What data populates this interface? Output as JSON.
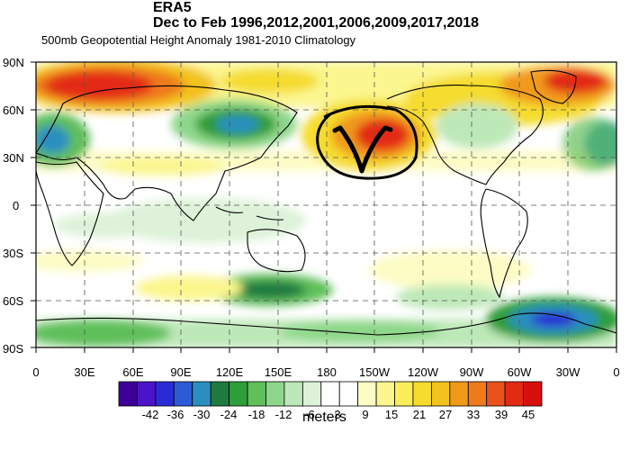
{
  "titles": {
    "line1": "ERA5",
    "line2": "Dec to Feb 1996,2012,2001,2006,2009,2017,2018",
    "line3": "500mb Geopotential Height Anomaly  1981-2010 Climatology"
  },
  "map": {
    "lat_labels": [
      "90N",
      "60N",
      "30N",
      "0",
      "30S",
      "60S",
      "90S"
    ],
    "lon_labels": [
      "0",
      "30E",
      "60E",
      "90E",
      "120E",
      "150E",
      "180",
      "150W",
      "120W",
      "90W",
      "60W",
      "30W",
      "0"
    ],
    "annotation": {
      "symbol": "V",
      "shape": "hand-drawn circle",
      "color": "#000000"
    }
  },
  "colorbar": {
    "labels": [
      "-42",
      "-36",
      "-30",
      "-24",
      "-18",
      "-12",
      "-6",
      "3",
      "9",
      "15",
      "21",
      "27",
      "33",
      "39",
      "45"
    ],
    "colors": [
      "#3d0099",
      "#4c14c8",
      "#2b2bd6",
      "#2d5bd6",
      "#2a8fbf",
      "#1f7a3f",
      "#2e9e3a",
      "#5fbf5a",
      "#8ed78a",
      "#bde8b8",
      "#ddf2d8",
      "#ffffff",
      "#ffffff",
      "#fdfcc4",
      "#fbf68e",
      "#f8ee5a",
      "#f5dc2e",
      "#f2c21e",
      "#f09a1a",
      "#ee7a1a",
      "#e9521a",
      "#e32a14",
      "#d80f0f"
    ],
    "units": "meters"
  }
}
